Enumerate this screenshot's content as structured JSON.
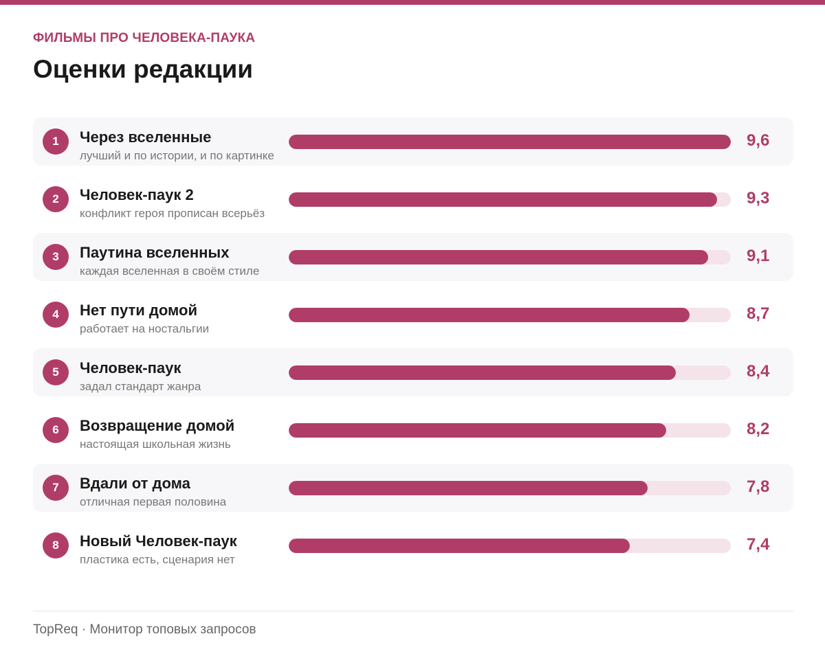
{
  "header": {
    "kicker": "ФИЛЬМЫ ПРО ЧЕЛОВЕКА-ПАУКА",
    "title": "Оценки редакции"
  },
  "colors": {
    "accent": "#b03d68",
    "track": "#f5e3ea",
    "row_shade": "#f7f7f9"
  },
  "chart_data": {
    "type": "bar",
    "orientation": "horizontal",
    "title": "Оценки редакции",
    "xlim": [
      0,
      9.6
    ],
    "rows": [
      {
        "rank": "1",
        "name": "Через вселенные",
        "note": "лучший и по истории, и по картинке",
        "value": 9.6,
        "label": "9,6"
      },
      {
        "rank": "2",
        "name": "Человек-паук 2",
        "note": "конфликт героя прописан всерьёз",
        "value": 9.3,
        "label": "9,3"
      },
      {
        "rank": "3",
        "name": "Паутина вселенных",
        "note": "каждая вселенная в своём стиле",
        "value": 9.1,
        "label": "9,1"
      },
      {
        "rank": "4",
        "name": "Нет пути домой",
        "note": "работает на ностальгии",
        "value": 8.7,
        "label": "8,7"
      },
      {
        "rank": "5",
        "name": "Человек-паук",
        "note": "задал стандарт жанра",
        "value": 8.4,
        "label": "8,4"
      },
      {
        "rank": "6",
        "name": "Возвращение домой",
        "note": "настоящая школьная жизнь",
        "value": 8.2,
        "label": "8,2"
      },
      {
        "rank": "7",
        "name": "Вдали от дома",
        "note": "отличная первая половина",
        "value": 7.8,
        "label": "7,8"
      },
      {
        "rank": "8",
        "name": "Новый Человек-паук",
        "note": "пластика есть, сценария нет",
        "value": 7.4,
        "label": "7,4"
      }
    ]
  },
  "footer": {
    "text": "TopReq · Монитор топовых запросов"
  }
}
